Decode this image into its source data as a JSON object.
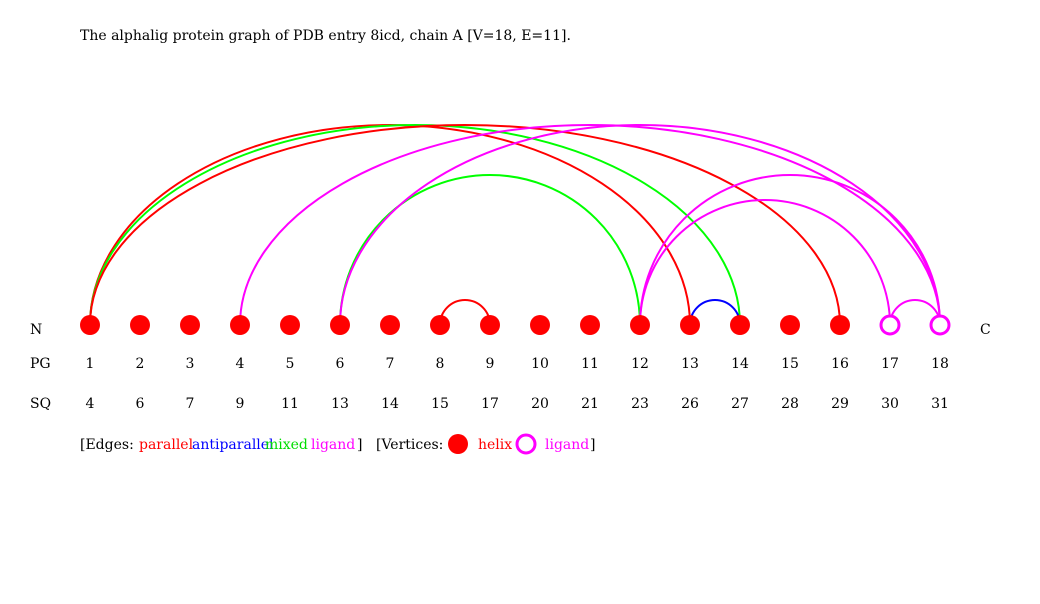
{
  "title": "The alphalig protein graph of PDB entry 8icd, chain A [V=18, E=11].",
  "labels": {
    "n_term": "N",
    "c_term": "C",
    "pg_row": "PG",
    "sq_row": "SQ"
  },
  "colors": {
    "parallel": "#ff0000",
    "antiparallel": "#0000ff",
    "mixed": "#00ff00",
    "ligand": "#ff00ff",
    "helix": "#ff0000",
    "ligand_vertex": "#ff00ff"
  },
  "vertices": [
    {
      "pg": "1",
      "sq": "4",
      "type": "helix"
    },
    {
      "pg": "2",
      "sq": "6",
      "type": "helix"
    },
    {
      "pg": "3",
      "sq": "7",
      "type": "helix"
    },
    {
      "pg": "4",
      "sq": "9",
      "type": "helix"
    },
    {
      "pg": "5",
      "sq": "11",
      "type": "helix"
    },
    {
      "pg": "6",
      "sq": "13",
      "type": "helix"
    },
    {
      "pg": "7",
      "sq": "14",
      "type": "helix"
    },
    {
      "pg": "8",
      "sq": "15",
      "type": "helix"
    },
    {
      "pg": "9",
      "sq": "17",
      "type": "helix"
    },
    {
      "pg": "10",
      "sq": "20",
      "type": "helix"
    },
    {
      "pg": "11",
      "sq": "21",
      "type": "helix"
    },
    {
      "pg": "12",
      "sq": "23",
      "type": "helix"
    },
    {
      "pg": "13",
      "sq": "26",
      "type": "helix"
    },
    {
      "pg": "14",
      "sq": "27",
      "type": "helix"
    },
    {
      "pg": "15",
      "sq": "28",
      "type": "helix"
    },
    {
      "pg": "16",
      "sq": "29",
      "type": "helix"
    },
    {
      "pg": "17",
      "sq": "30",
      "type": "ligand"
    },
    {
      "pg": "18",
      "sq": "31",
      "type": "ligand"
    }
  ],
  "edges": [
    {
      "from": 1,
      "to": 13,
      "type": "parallel"
    },
    {
      "from": 1,
      "to": 14,
      "type": "mixed"
    },
    {
      "from": 1,
      "to": 16,
      "type": "parallel"
    },
    {
      "from": 4,
      "to": 18,
      "type": "ligand"
    },
    {
      "from": 6,
      "to": 12,
      "type": "mixed"
    },
    {
      "from": 6,
      "to": 18,
      "type": "ligand"
    },
    {
      "from": 8,
      "to": 9,
      "type": "parallel"
    },
    {
      "from": 12,
      "to": 17,
      "type": "ligand"
    },
    {
      "from": 12,
      "to": 18,
      "type": "ligand"
    },
    {
      "from": 13,
      "to": 14,
      "type": "antiparallel"
    },
    {
      "from": 17,
      "to": 18,
      "type": "ligand"
    }
  ],
  "legend": {
    "edges_prefix": "[Edges:",
    "parallel": "parallel",
    "antiparallel": "antiparallel",
    "mixed": "mixed",
    "ligand": "ligand",
    "edges_suffix": "]",
    "vertices_prefix": "[Vertices:",
    "helix": "helix",
    "ligand_vertex": "ligand",
    "vertices_suffix": "]"
  }
}
